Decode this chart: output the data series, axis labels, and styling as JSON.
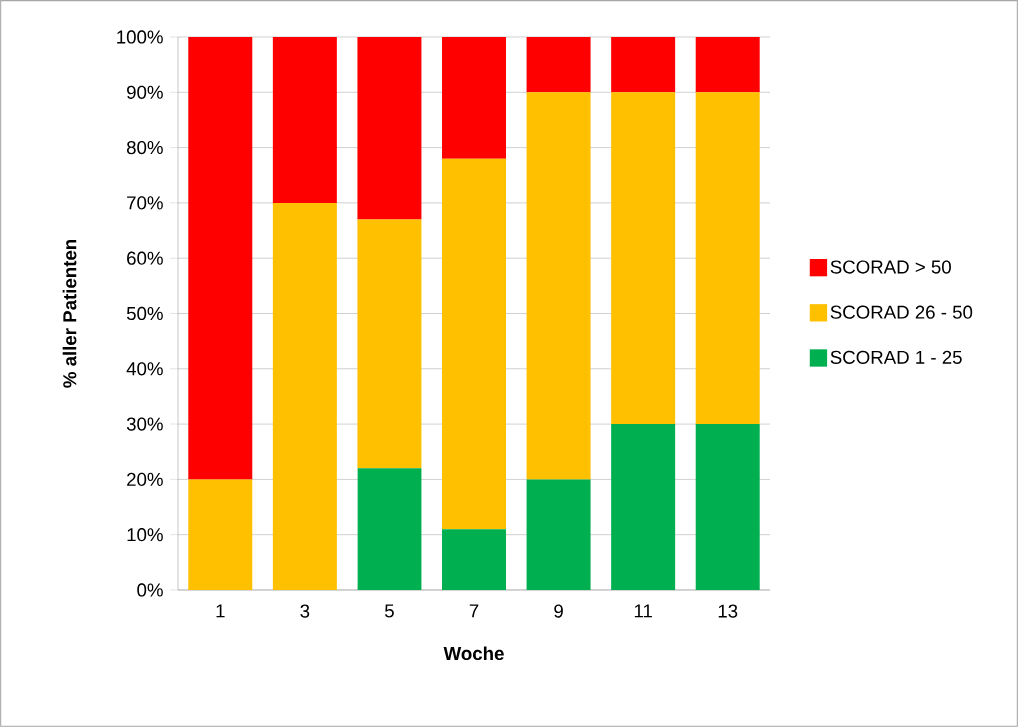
{
  "chart_data": {
    "type": "bar",
    "stacked": true,
    "xlabel": "Woche",
    "ylabel": "% aller Patienten",
    "categories": [
      "1",
      "3",
      "5",
      "7",
      "9",
      "11",
      "13"
    ],
    "series": [
      {
        "name": "SCORAD 1 - 25",
        "color": "#00b050",
        "values": [
          0,
          0,
          22,
          11,
          20,
          30,
          30
        ]
      },
      {
        "name": "SCORAD 26 - 50",
        "color": "#ffc000",
        "values": [
          20,
          70,
          45,
          67,
          70,
          60,
          60
        ]
      },
      {
        "name": "SCORAD > 50",
        "color": "#ff0000",
        "values": [
          80,
          30,
          33,
          22,
          10,
          10,
          10
        ]
      }
    ],
    "ylim": [
      0,
      100
    ],
    "yticks": [
      {
        "value": 0,
        "label": "0%"
      },
      {
        "value": 10,
        "label": "10%"
      },
      {
        "value": 20,
        "label": "20%"
      },
      {
        "value": 30,
        "label": "30%"
      },
      {
        "value": 40,
        "label": "40%"
      },
      {
        "value": 50,
        "label": "50%"
      },
      {
        "value": 60,
        "label": "60%"
      },
      {
        "value": 70,
        "label": "70%"
      },
      {
        "value": 80,
        "label": "80%"
      },
      {
        "value": 90,
        "label": "90%"
      },
      {
        "value": 100,
        "label": "100%"
      }
    ],
    "grid": "y",
    "legend": "right"
  }
}
